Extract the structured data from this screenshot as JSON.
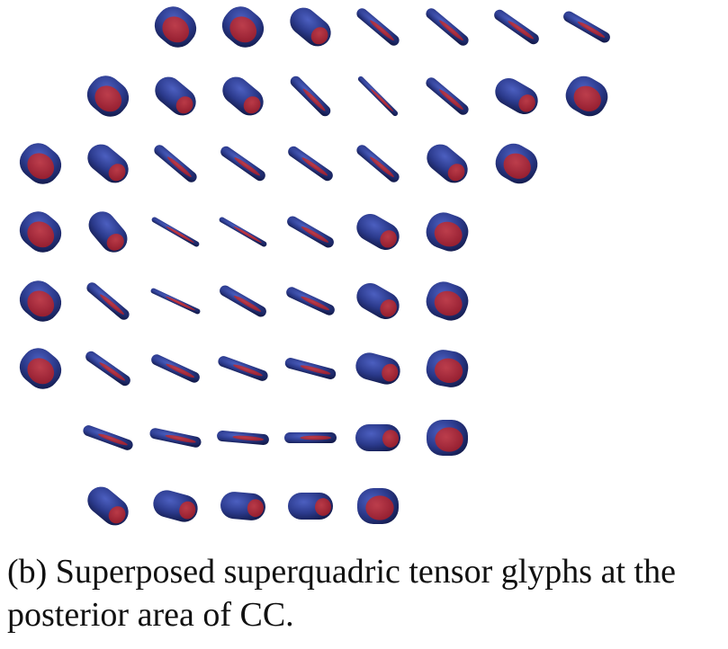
{
  "caption": "(b) Superposed superquadric tensor glyphs at the posterior area of CC.",
  "colors": {
    "glyph_blue": "#2b3a8c",
    "glyph_red": "#a61a24",
    "glyph_dark": "#141c4e",
    "background": "#ffffff"
  },
  "glyph_grid": {
    "rows": [
      [
        "cyl-round",
        "cyl-round",
        "cyl",
        "rod",
        "rod",
        "rod",
        "rod"
      ],
      [
        "cyl-round",
        "cyl",
        "cyl",
        "rod",
        "thin",
        "rod",
        "cyl",
        "cyl-round"
      ],
      [
        "cyl-round",
        "cyl",
        "rod",
        "rod",
        "rod",
        "rod",
        "cyl",
        "cyl-round"
      ],
      [
        "cyl-round",
        "cyl",
        "thin",
        "thin",
        "rod",
        "cyl",
        "cyl-round"
      ],
      [
        "cyl-round",
        "rod",
        "thin",
        "rod",
        "rod",
        "cyl",
        "cyl-round"
      ],
      [
        "cyl-round",
        "rod",
        "rod",
        "rod",
        "rod",
        "cyl",
        "cyl-round"
      ],
      [
        "rod",
        "rod",
        "rod",
        "rod",
        "cyl",
        "cyl-round"
      ],
      [
        "cyl",
        "cyl",
        "cyl",
        "cyl",
        "cyl-round"
      ]
    ]
  }
}
